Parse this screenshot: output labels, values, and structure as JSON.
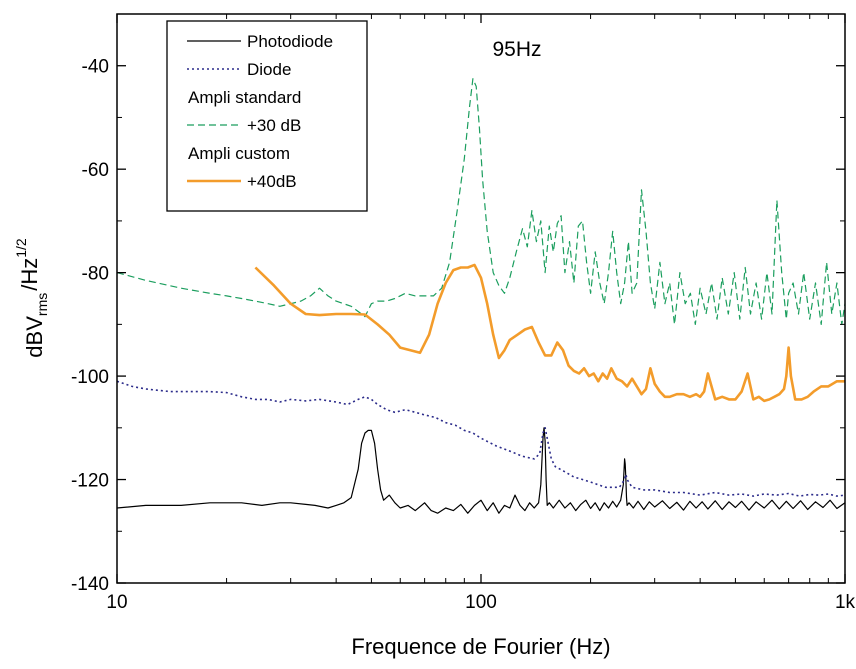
{
  "chart_data": {
    "type": "line",
    "title": "",
    "xlabel": "Frequence de Fourier (Hz)",
    "ylabel_parts": {
      "base": "dBV",
      "sub": "rms",
      "mid": "/Hz",
      "sup": "1/2"
    },
    "xscale": "log",
    "xlim": [
      10,
      1000
    ],
    "ylim": [
      -140,
      -30
    ],
    "x_ticks": [
      {
        "value": 10,
        "label": "10"
      },
      {
        "value": 100,
        "label": "100"
      },
      {
        "value": 1000,
        "label": "1k"
      }
    ],
    "y_ticks": [
      {
        "value": -40,
        "label": "-40"
      },
      {
        "value": -60,
        "label": "-60"
      },
      {
        "value": -80,
        "label": "-80"
      },
      {
        "value": -100,
        "label": "-100"
      },
      {
        "value": -120,
        "label": "-120"
      },
      {
        "value": -140,
        "label": "-140"
      }
    ],
    "grid": false,
    "legend_position": "top-left",
    "legend": [
      {
        "label": "Photodiode",
        "series": 0
      },
      {
        "label": "Diode",
        "series": 1
      },
      {
        "label": "Ampli standard",
        "series": null
      },
      {
        "label": "+30 dB",
        "series": 2
      },
      {
        "label": "Ampli custom",
        "series": null
      },
      {
        "label": "+40dB",
        "series": 3
      }
    ],
    "annotations": [
      {
        "text": "95Hz",
        "x": 95,
        "y": -36.5
      }
    ],
    "series": [
      {
        "name": "Photodiode",
        "color": "#000000",
        "style": "solid",
        "x": [
          10,
          12,
          15,
          18,
          20,
          22,
          25,
          28,
          30,
          33,
          35,
          38,
          40,
          42,
          44,
          46,
          47,
          48,
          49,
          50,
          51,
          52,
          53,
          54,
          56,
          58,
          60,
          63,
          66,
          70,
          73,
          76,
          80,
          84,
          88,
          92,
          96,
          100,
          104,
          108,
          112,
          116,
          120,
          124,
          128,
          132,
          136,
          140,
          144,
          146,
          148,
          149,
          150,
          151,
          152,
          154,
          158,
          164,
          170,
          176,
          182,
          188,
          194,
          200,
          206,
          212,
          218,
          224,
          230,
          236,
          242,
          246,
          248,
          249,
          250,
          251,
          252,
          255,
          262,
          270,
          280,
          290,
          300,
          315,
          330,
          345,
          360,
          375,
          390,
          405,
          420,
          440,
          460,
          480,
          500,
          520,
          545,
          570,
          600,
          630,
          660,
          690,
          720,
          755,
          790,
          830,
          870,
          910,
          950,
          1000
        ],
        "values": [
          -125.5,
          -125,
          -125,
          -124.5,
          -124.5,
          -124.5,
          -125,
          -124.5,
          -124.5,
          -124.8,
          -125,
          -125.5,
          -125,
          -124.5,
          -123.5,
          -118,
          -113,
          -111,
          -110.5,
          -110.5,
          -113,
          -118,
          -122,
          -124,
          -123,
          -124.5,
          -125.5,
          -125,
          -126,
          -124.5,
          -126,
          -126.5,
          -125.5,
          -126,
          -124.8,
          -126.5,
          -125,
          -124,
          -126,
          -124.5,
          -126.5,
          -125,
          -125.5,
          -123,
          -125,
          -126,
          -124.5,
          -125.5,
          -124.5,
          -121,
          -112,
          -110,
          -112.5,
          -120,
          -125,
          -124.5,
          -125.5,
          -124,
          -125.5,
          -124.5,
          -126,
          -124.8,
          -124,
          -125.6,
          -124.5,
          -126,
          -124.5,
          -125.5,
          -124.2,
          -125.3,
          -124,
          -121,
          -116,
          -117,
          -120,
          -123.5,
          -125,
          -124.5,
          -125.5,
          -124.2,
          -125.8,
          -124.3,
          -125.3,
          -124.1,
          -125.6,
          -124.4,
          -125.9,
          -124.2,
          -125.5,
          -124.3,
          -125.7,
          -124.1,
          -125.8,
          -124.3,
          -125.4,
          -124.2,
          -125.9,
          -124.3,
          -125.5,
          -124,
          -125.7,
          -124.2,
          -125.6,
          -124.1,
          -125.8,
          -124.3,
          -125.4,
          -124,
          -125.6,
          -124.5
        ]
      },
      {
        "name": "Diode",
        "color": "#2b2b8a",
        "style": "dotted",
        "x": [
          10,
          11,
          12,
          14,
          16,
          18,
          20,
          22,
          24,
          26,
          28,
          30,
          33,
          36,
          40,
          43,
          46,
          48,
          50,
          52,
          55,
          58,
          62,
          66,
          70,
          75,
          80,
          85,
          90,
          95,
          100,
          110,
          120,
          130,
          140,
          145,
          148,
          150,
          152,
          156,
          160,
          170,
          180,
          190,
          200,
          220,
          240,
          248,
          250,
          252,
          260,
          280,
          300,
          330,
          360,
          400,
          440,
          480,
          520,
          560,
          600,
          650,
          700,
          750,
          800,
          850,
          900,
          950,
          1000
        ],
        "values": [
          -101,
          -102,
          -102.5,
          -103,
          -103,
          -103,
          -103.2,
          -104,
          -104.5,
          -104.5,
          -105,
          -104.5,
          -104.8,
          -104.5,
          -105,
          -105.5,
          -104.5,
          -104,
          -104.5,
          -105.5,
          -106.5,
          -107,
          -106.5,
          -107,
          -107.5,
          -108,
          -109,
          -109.5,
          -110.5,
          -111,
          -112,
          -113.5,
          -114.5,
          -115.5,
          -116,
          -115,
          -111,
          -110,
          -112,
          -116,
          -117.5,
          -118.5,
          -119.5,
          -120,
          -120.5,
          -121.5,
          -121.5,
          -120,
          -119,
          -120,
          -121.5,
          -122,
          -122,
          -122.5,
          -122.5,
          -123,
          -122.5,
          -123,
          -122.8,
          -123.2,
          -122.8,
          -123,
          -122.7,
          -123.2,
          -122.9,
          -123,
          -122.8,
          -123.2,
          -123
        ]
      },
      {
        "name": "+30 dB",
        "color": "#1b9e5e",
        "style": "dashed",
        "x": [
          10,
          12,
          15,
          18,
          20,
          22,
          24,
          26,
          28,
          30,
          32,
          34,
          36,
          38,
          40,
          44,
          48,
          50,
          52,
          55,
          58,
          62,
          66,
          70,
          74,
          78,
          82,
          86,
          90,
          93,
          95,
          97,
          99,
          101,
          104,
          108,
          112,
          116,
          120,
          125,
          130,
          134,
          138,
          142,
          146,
          150,
          154,
          158,
          162,
          166,
          170,
          175,
          180,
          185,
          190,
          195,
          200,
          206,
          212,
          218,
          224,
          230,
          236,
          242,
          248,
          254,
          260,
          268,
          276,
          284,
          292,
          300,
          310,
          320,
          330,
          340,
          352,
          364,
          376,
          388,
          400,
          415,
          430,
          445,
          460,
          478,
          496,
          514,
          532,
          550,
          570,
          590,
          610,
          630,
          650,
          670,
          690,
          700,
          720,
          745,
          770,
          800,
          830,
          860,
          890,
          920,
          950,
          980,
          1000
        ],
        "values": [
          -80,
          -81.5,
          -83,
          -84,
          -84.5,
          -85,
          -85.5,
          -86,
          -86.5,
          -86,
          -85.5,
          -84.5,
          -83,
          -84.5,
          -85.5,
          -86.5,
          -88.5,
          -86,
          -85.5,
          -85.5,
          -85,
          -84,
          -84.5,
          -84.5,
          -84.5,
          -83,
          -78,
          -68,
          -58,
          -48,
          -42.5,
          -44,
          -52,
          -62,
          -72,
          -80,
          -82.5,
          -84,
          -81,
          -76,
          -71.5,
          -75,
          -68,
          -74,
          -70,
          -80,
          -71,
          -76,
          -70.5,
          -69,
          -80,
          -74,
          -82,
          -71,
          -70,
          -78,
          -84,
          -76,
          -82,
          -86,
          -80,
          -72,
          -80,
          -86,
          -82,
          -74,
          -84,
          -82,
          -64,
          -72,
          -82,
          -87,
          -78,
          -86,
          -82,
          -90,
          -80,
          -86,
          -84,
          -90,
          -83,
          -88,
          -82,
          -89,
          -81,
          -88,
          -80,
          -89,
          -79,
          -88,
          -82,
          -89,
          -80,
          -88,
          -66,
          -80,
          -89,
          -84,
          -82,
          -88,
          -80,
          -89,
          -82,
          -90,
          -78,
          -88,
          -82,
          -90,
          -86
        ]
      },
      {
        "name": "+40dB",
        "color": "#f39c2b",
        "style": "solid",
        "x": [
          24,
          27,
          30,
          33,
          36,
          40,
          44,
          48,
          52,
          56,
          60,
          64,
          68,
          72,
          76,
          80,
          84,
          88,
          92,
          96,
          100,
          104,
          108,
          112,
          116,
          120,
          126,
          132,
          138,
          144,
          150,
          156,
          162,
          168,
          174,
          180,
          186,
          192,
          198,
          204,
          210,
          216,
          222,
          228,
          236,
          244,
          252,
          260,
          268,
          276,
          284,
          292,
          300,
          310,
          320,
          330,
          345,
          360,
          375,
          390,
          400,
          410,
          420,
          440,
          460,
          480,
          500,
          520,
          540,
          560,
          580,
          600,
          620,
          640,
          660,
          680,
          690,
          700,
          710,
          730,
          760,
          790,
          820,
          860,
          900,
          950,
          1000
        ],
        "values": [
          -79,
          -82.5,
          -86,
          -88,
          -88.2,
          -88,
          -88,
          -88.1,
          -90,
          -92,
          -94.5,
          -95,
          -95.5,
          -92,
          -86,
          -82,
          -79.5,
          -79,
          -79,
          -78.5,
          -81,
          -86,
          -92,
          -96.5,
          -95,
          -93,
          -92,
          -91,
          -90.5,
          -93.5,
          -96,
          -96,
          -93.5,
          -95,
          -98,
          -99,
          -99.5,
          -98.5,
          -100,
          -99.5,
          -101,
          -99.5,
          -100.5,
          -98.5,
          -100.5,
          -101,
          -102,
          -100.5,
          -102,
          -103.5,
          -102.5,
          -98.5,
          -101.5,
          -103,
          -104,
          -104,
          -103.5,
          -103.5,
          -104,
          -103.5,
          -104,
          -103,
          -99.5,
          -104.5,
          -104,
          -104.5,
          -104.5,
          -103,
          -99.5,
          -104.5,
          -104,
          -104.8,
          -104.5,
          -104,
          -103.5,
          -102.5,
          -100,
          -94.5,
          -100,
          -104.5,
          -104.5,
          -104,
          -103,
          -102,
          -102,
          -101,
          -101
        ]
      }
    ]
  }
}
